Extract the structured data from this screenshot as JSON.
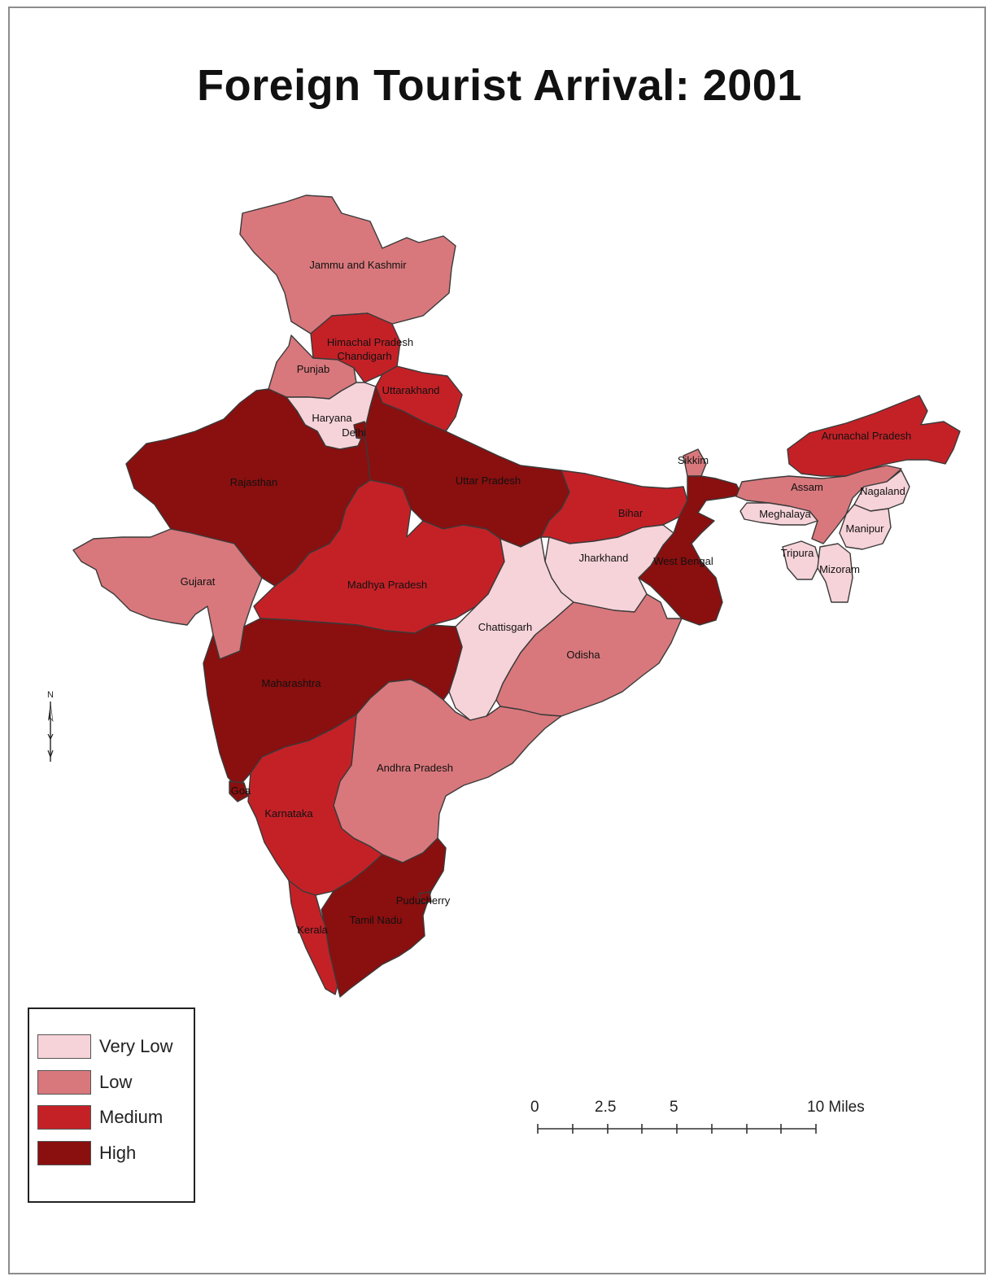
{
  "title": "Foreign Tourist Arrival: 2001",
  "colors": {
    "very_low": "#f6d3d9",
    "low": "#d8787c",
    "medium": "#c42127",
    "high": "#8a0f0f"
  },
  "legend": [
    {
      "label": "Very Low",
      "class": "very_low"
    },
    {
      "label": "Low",
      "class": "low"
    },
    {
      "label": "Medium",
      "class": "medium"
    },
    {
      "label": "High",
      "class": "high"
    }
  ],
  "regions": {
    "jammu_kashmir": {
      "name": "Jammu and Kashmir",
      "class": "low"
    },
    "himachal_pradesh": {
      "name": "Himachal Pradesh",
      "class": "medium"
    },
    "chandigarh": {
      "name": "Chandigarh",
      "class": "medium"
    },
    "punjab": {
      "name": "Punjab",
      "class": "low"
    },
    "uttarakhand": {
      "name": "Uttarakhand",
      "class": "medium"
    },
    "haryana": {
      "name": "Haryana",
      "class": "very_low"
    },
    "delhi": {
      "name": "Delhi",
      "class": "high"
    },
    "rajasthan": {
      "name": "Rajasthan",
      "class": "high"
    },
    "uttar_pradesh": {
      "name": "Uttar Pradesh",
      "class": "high"
    },
    "bihar": {
      "name": "Bihar",
      "class": "medium"
    },
    "sikkim": {
      "name": "Sikkim",
      "class": "low"
    },
    "arunachal_pradesh": {
      "name": "Arunachal Pradesh",
      "class": "medium"
    },
    "assam": {
      "name": "Assam",
      "class": "low"
    },
    "nagaland": {
      "name": "Nagaland",
      "class": "very_low"
    },
    "meghalaya": {
      "name": "Meghalaya",
      "class": "very_low"
    },
    "manipur": {
      "name": "Manipur",
      "class": "very_low"
    },
    "tripura": {
      "name": "Tripura",
      "class": "very_low"
    },
    "mizoram": {
      "name": "Mizoram",
      "class": "very_low"
    },
    "gujarat": {
      "name": "Gujarat",
      "class": "low"
    },
    "madhya_pradesh": {
      "name": "Madhya Pradesh",
      "class": "medium"
    },
    "jharkhand": {
      "name": "Jharkhand",
      "class": "very_low"
    },
    "west_bengal": {
      "name": "West Bengal",
      "class": "high"
    },
    "chhattisgarh": {
      "name": "Chattisgarh",
      "class": "very_low"
    },
    "odisha": {
      "name": "Odisha",
      "class": "low"
    },
    "maharashtra": {
      "name": "Maharashtra",
      "class": "high"
    },
    "andhra_pradesh": {
      "name": "Andhra Pradesh",
      "class": "low"
    },
    "goa": {
      "name": "Goa",
      "class": "high"
    },
    "karnataka": {
      "name": "Karnataka",
      "class": "medium"
    },
    "kerala": {
      "name": "Kerala",
      "class": "medium"
    },
    "tamil_nadu": {
      "name": "Tamil Nadu",
      "class": "high"
    },
    "puducherry": {
      "name": "Puducherry",
      "class": "high"
    }
  },
  "scale_bar": {
    "labels": [
      "0",
      "2.5",
      "5",
      "10 Miles"
    ]
  },
  "north_arrow": {
    "label": "N",
    "icon": "north-arrow-icon"
  }
}
